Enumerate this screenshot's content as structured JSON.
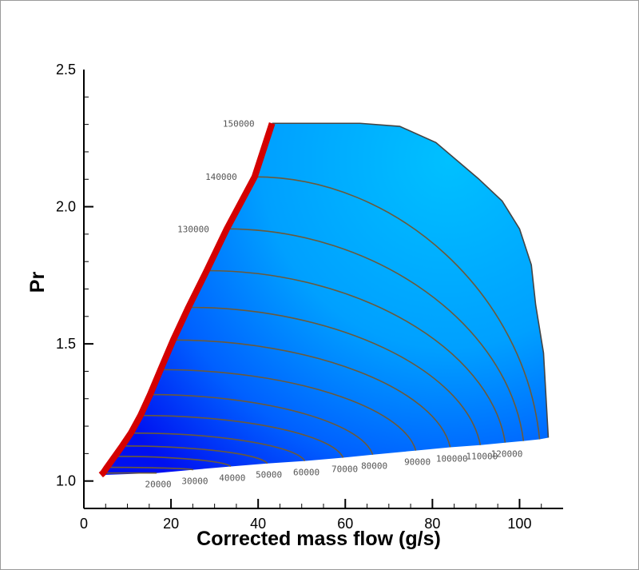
{
  "chart_data": {
    "type": "line",
    "title": "",
    "xlabel": "Corrected mass flow (g/s)",
    "ylabel": "Pr",
    "xlim": [
      0,
      110
    ],
    "ylim": [
      0.9,
      2.5
    ],
    "x_ticks": [
      0,
      20,
      40,
      60,
      80,
      100
    ],
    "x_tick_labels": [
      "0",
      "20",
      "40",
      "60",
      "80",
      "100"
    ],
    "y_ticks": [
      1.0,
      1.5,
      2.0,
      2.5
    ],
    "y_tick_labels": [
      "1.0",
      "1.5",
      "2.0",
      "2.5"
    ],
    "grid": false,
    "colors": {
      "surge_line": "#d40000",
      "speed_line": "#6b5a3a",
      "fill_light": "#00b8ff",
      "fill_dark": "#0018f0"
    },
    "speed_lines": [
      {
        "label": "20000",
        "surge": [
          4.4,
          1.029
        ],
        "choke": [
          16.7,
          1.029
        ]
      },
      {
        "label": "30000",
        "surge": [
          5.3,
          1.05
        ],
        "choke": [
          25.1,
          1.041
        ]
      },
      {
        "label": "40000",
        "surge": [
          7.1,
          1.09
        ],
        "choke": [
          33.7,
          1.053
        ]
      },
      {
        "label": "50000",
        "surge": [
          8.8,
          1.128
        ],
        "choke": [
          42.1,
          1.064
        ]
      },
      {
        "label": "60000",
        "surge": [
          10.8,
          1.175
        ],
        "choke": [
          50.7,
          1.073
        ]
      },
      {
        "label": "70000",
        "surge": [
          13.0,
          1.239
        ],
        "choke": [
          59.5,
          1.085
        ]
      },
      {
        "label": "80000",
        "surge": [
          15.2,
          1.315
        ],
        "choke": [
          66.3,
          1.096
        ]
      },
      {
        "label": "90000",
        "surge": [
          17.6,
          1.406
        ],
        "choke": [
          76.2,
          1.111
        ]
      },
      {
        "label": "100000",
        "surge": [
          20.5,
          1.514
        ],
        "choke": [
          84.1,
          1.123
        ]
      },
      {
        "label": "110000",
        "surge": [
          24.0,
          1.633
        ],
        "choke": [
          91.0,
          1.131
        ]
      },
      {
        "label": "120000",
        "surge": [
          28.2,
          1.767
        ],
        "choke": [
          96.7,
          1.14
        ]
      },
      {
        "label": "130000",
        "surge": [
          32.8,
          1.919
        ],
        "choke": [
          100.9,
          1.146
        ]
      },
      {
        "label": "140000",
        "surge": [
          39.2,
          2.109
        ],
        "choke": [
          104.6,
          1.152
        ]
      },
      {
        "label": "150000",
        "surge": [
          43.2,
          2.304
        ],
        "choke": [
          106.6,
          1.158
        ]
      }
    ],
    "max_speed_line": [
      [
        44.0,
        2.304
      ],
      [
        54.2,
        2.304
      ],
      [
        63.4,
        2.304
      ],
      [
        72.5,
        2.293
      ],
      [
        80.8,
        2.234
      ],
      [
        90.5,
        2.103
      ],
      [
        96.0,
        2.021
      ],
      [
        100.0,
        1.919
      ],
      [
        102.7,
        1.788
      ],
      [
        103.7,
        1.642
      ],
      [
        105.5,
        1.467
      ],
      [
        106.6,
        1.158
      ]
    ],
    "surge_line_start": [
      3.9,
      1.022
    ]
  }
}
